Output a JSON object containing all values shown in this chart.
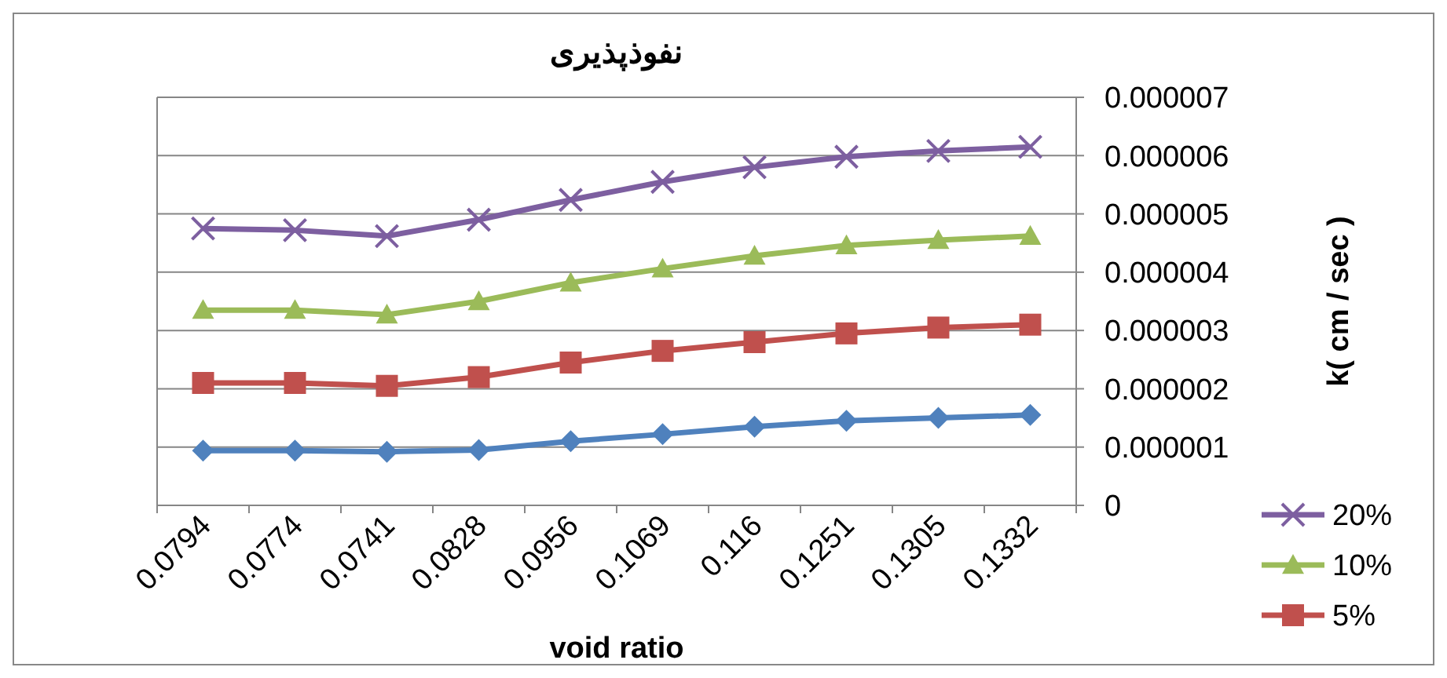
{
  "chart_data": {
    "type": "line",
    "title": "نفوذپذیری",
    "xlabel": "void ratio",
    "ylabel": "k( cm / sec )",
    "categories": [
      "0.0794",
      "0.0774",
      "0.0741",
      "0.0828",
      "0.0956",
      "0.1069",
      "0.116",
      "0.1251",
      "0.1305",
      "0.1332"
    ],
    "series": [
      {
        "color": "#4f81bd",
        "marker": "diamond",
        "values": [
          9.4e-07,
          9.4e-07,
          9.2e-07,
          9.5e-07,
          1.1e-06,
          1.22e-06,
          1.35e-06,
          1.45e-06,
          1.5e-06,
          1.55e-06
        ]
      },
      {
        "name": "5%",
        "color": "#c0504d",
        "marker": "square",
        "values": [
          2.1e-06,
          2.1e-06,
          2.05e-06,
          2.2e-06,
          2.45e-06,
          2.65e-06,
          2.8e-06,
          2.95e-06,
          3.05e-06,
          3.1e-06
        ]
      },
      {
        "name": "10%",
        "color": "#9bbb59",
        "marker": "triangle",
        "values": [
          3.35e-06,
          3.35e-06,
          3.27e-06,
          3.5e-06,
          3.82e-06,
          4.06e-06,
          4.28e-06,
          4.46e-06,
          4.55e-06,
          4.62e-06
        ]
      },
      {
        "name": "20%",
        "color": "#7d5fa0",
        "marker": "cross",
        "values": [
          4.75e-06,
          4.72e-06,
          4.62e-06,
          4.9e-06,
          5.24e-06,
          5.55e-06,
          5.8e-06,
          5.98e-06,
          6.08e-06,
          6.15e-06
        ]
      }
    ],
    "ylim": [
      0,
      7e-06
    ],
    "yticks": [
      {
        "value": 0,
        "label": "0"
      },
      {
        "value": 1e-06,
        "label": "0.000001"
      },
      {
        "value": 2e-06,
        "label": "0.000002"
      },
      {
        "value": 3e-06,
        "label": "0.000003"
      },
      {
        "value": 4e-06,
        "label": "0.000004"
      },
      {
        "value": 5e-06,
        "label": "0.000005"
      },
      {
        "value": 6e-06,
        "label": "0.000006"
      },
      {
        "value": 7e-06,
        "label": "0.000007"
      }
    ],
    "grid": "y",
    "legend": "right",
    "line_style": "solid"
  }
}
